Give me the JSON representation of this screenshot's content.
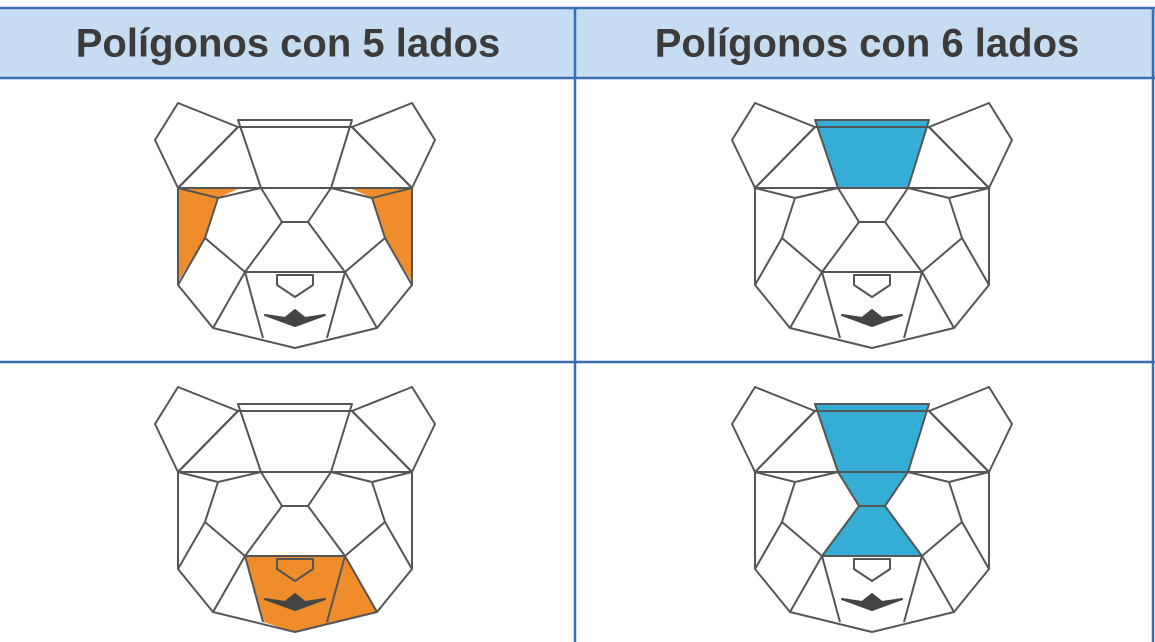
{
  "table": {
    "headers": [
      "Polígonos con 5 lados",
      "Polígonos con 6 lados"
    ]
  }
}
